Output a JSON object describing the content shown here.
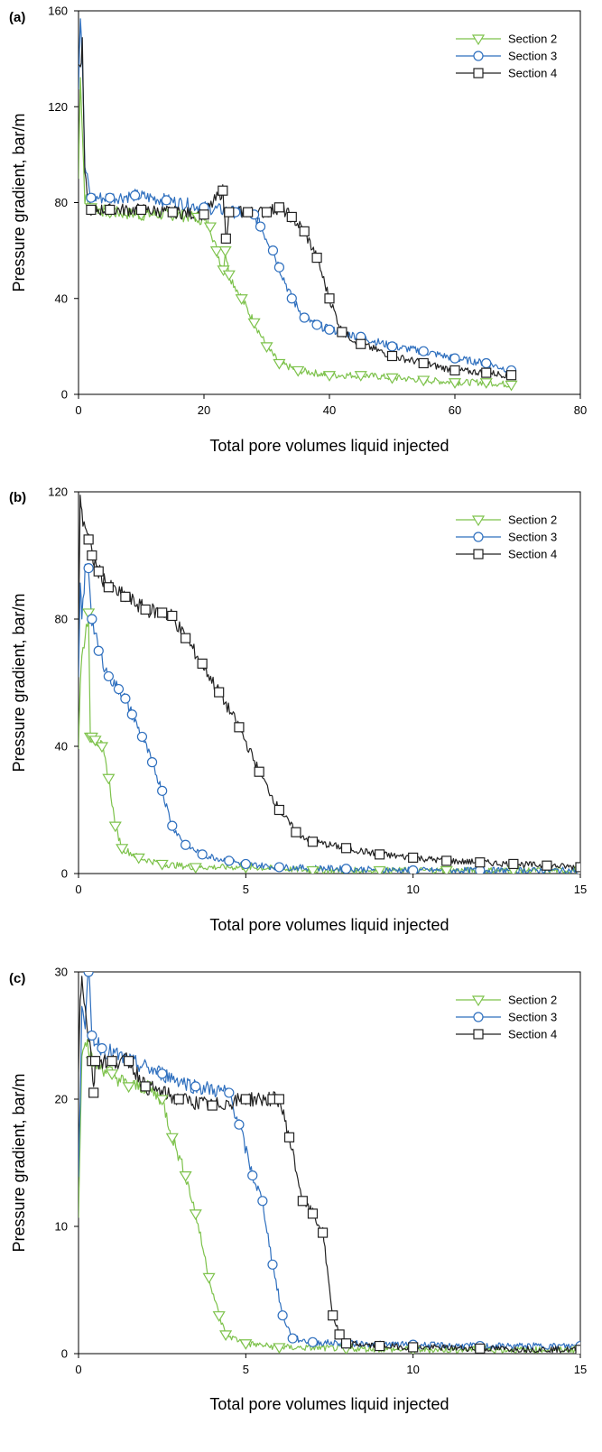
{
  "colors": {
    "section2": "#7dc24b",
    "section3": "#2e6fbe",
    "section4": "#222222",
    "frame": "#000000"
  },
  "chart_data": [
    {
      "type": "line",
      "panel_label": "(a)",
      "xlabel": "Total pore volumes liquid injected",
      "ylabel": "Pressure gradient, bar/m",
      "xlim": [
        0,
        80
      ],
      "ylim": [
        0,
        160
      ],
      "xticks": [
        "0",
        "20",
        "40",
        "60",
        "80"
      ],
      "yticks": [
        "0",
        "40",
        "80",
        "120",
        "160"
      ],
      "legend_position": "top-right",
      "series": [
        {
          "name": "Section 2",
          "marker": "triangle-down",
          "color": "#7dc24b",
          "x": [
            0,
            0.3,
            0.6,
            1,
            2,
            5,
            10,
            15,
            19,
            21,
            22,
            23.1,
            23.4,
            24,
            26,
            28,
            30,
            32,
            35,
            40,
            45,
            50,
            55,
            60,
            65,
            69
          ],
          "y": [
            90,
            135,
            110,
            82,
            78,
            76,
            75,
            75,
            74,
            70,
            60,
            52,
            60,
            50,
            40,
            30,
            20,
            13,
            10,
            8,
            8,
            7,
            6,
            5,
            5,
            4
          ]
        },
        {
          "name": "Section 3",
          "marker": "circle",
          "color": "#2e6fbe",
          "x": [
            0,
            0.3,
            0.6,
            1,
            2,
            5,
            9,
            14,
            20,
            25,
            28,
            29,
            31,
            32,
            34,
            36,
            38,
            40,
            45,
            50,
            55,
            60,
            65,
            69
          ],
          "y": [
            130,
            160,
            140,
            95,
            82,
            82,
            83,
            81,
            78,
            76,
            75,
            70,
            60,
            53,
            40,
            32,
            29,
            27,
            24,
            20,
            18,
            15,
            13,
            10
          ]
        },
        {
          "name": "Section 4",
          "marker": "square",
          "color": "#222222",
          "x": [
            0,
            0.3,
            0.6,
            1,
            2,
            5,
            10,
            15,
            20,
            23,
            23.5,
            24,
            27,
            30,
            32,
            34,
            36,
            38,
            40,
            42,
            45,
            50,
            55,
            60,
            65,
            69
          ],
          "y": [
            140,
            135,
            145,
            90,
            77,
            77,
            77,
            76,
            75,
            85,
            65,
            76,
            76,
            76,
            78,
            74,
            68,
            57,
            40,
            26,
            21,
            16,
            13,
            10,
            9,
            8
          ]
        }
      ]
    },
    {
      "type": "line",
      "panel_label": "(b)",
      "xlabel": "Total pore volumes liquid injected",
      "ylabel": "Pressure gradient, bar/m",
      "xlim": [
        0,
        15
      ],
      "ylim": [
        0,
        120
      ],
      "xticks": [
        "0",
        "5",
        "10",
        "15"
      ],
      "yticks": [
        "0",
        "40",
        "80",
        "120"
      ],
      "legend_position": "top-right",
      "series": [
        {
          "name": "Section 2",
          "marker": "triangle-down",
          "color": "#7dc24b",
          "x": [
            0,
            0.05,
            0.1,
            0.2,
            0.3,
            0.35,
            0.4,
            0.5,
            0.7,
            0.9,
            1.1,
            1.3,
            1.8,
            2.5,
            3.5,
            5,
            7,
            9,
            11,
            13,
            15
          ],
          "y": [
            40,
            60,
            68,
            75,
            82,
            43,
            43,
            42,
            40,
            30,
            15,
            8,
            5,
            3,
            2,
            2,
            1,
            1,
            1,
            1,
            1
          ]
        },
        {
          "name": "Section 3",
          "marker": "circle",
          "color": "#2e6fbe",
          "x": [
            0,
            0.05,
            0.1,
            0.2,
            0.3,
            0.4,
            0.6,
            0.9,
            1.2,
            1.4,
            1.6,
            1.9,
            2.2,
            2.5,
            2.8,
            3.2,
            3.7,
            4.5,
            5,
            6,
            8,
            10,
            12,
            15
          ],
          "y": [
            60,
            90,
            80,
            95,
            96,
            80,
            70,
            62,
            58,
            55,
            50,
            43,
            35,
            26,
            15,
            9,
            6,
            4,
            3,
            2,
            1.5,
            1,
            1,
            1
          ]
        },
        {
          "name": "Section 4",
          "marker": "square",
          "color": "#222222",
          "x": [
            0,
            0.05,
            0.1,
            0.2,
            0.3,
            0.4,
            0.6,
            0.9,
            1.4,
            2,
            2.5,
            2.8,
            3.2,
            3.7,
            4.2,
            4.8,
            5.4,
            6,
            6.5,
            7,
            8,
            9,
            10,
            11,
            12,
            13,
            14,
            15
          ],
          "y": [
            75,
            120,
            112,
            110,
            105,
            100,
            95,
            90,
            87,
            83,
            82,
            81,
            74,
            66,
            57,
            46,
            32,
            20,
            13,
            10,
            8,
            6,
            5,
            4,
            3.5,
            3,
            2.5,
            2
          ]
        }
      ]
    },
    {
      "type": "line",
      "panel_label": "(c)",
      "xlabel": "Total pore volumes liquid injected",
      "ylabel": "Pressure gradient, bar/m",
      "xlim": [
        0,
        15
      ],
      "ylim": [
        0,
        30
      ],
      "xticks": [
        "0",
        "5",
        "10",
        "15"
      ],
      "yticks": [
        "0",
        "10",
        "20",
        "30"
      ],
      "legend_position": "top-right",
      "series": [
        {
          "name": "Section 2",
          "marker": "triangle-down",
          "color": "#7dc24b",
          "x": [
            0,
            0.05,
            0.1,
            0.2,
            0.4,
            1,
            1.5,
            2,
            2.5,
            2.8,
            3.2,
            3.5,
            3.9,
            4.2,
            4.4,
            5,
            6,
            8,
            10,
            12,
            15
          ],
          "y": [
            11,
            17,
            24,
            25,
            23,
            22,
            21,
            21,
            20,
            17,
            14,
            11,
            6,
            3,
            1.5,
            0.8,
            0.5,
            0.4,
            0.3,
            0.3,
            0.3
          ]
        },
        {
          "name": "Section 3",
          "marker": "circle",
          "color": "#2e6fbe",
          "x": [
            0,
            0.05,
            0.1,
            0.2,
            0.3,
            0.4,
            0.7,
            1.5,
            2.5,
            3.5,
            4.5,
            4.8,
            5.2,
            5.5,
            5.8,
            6.1,
            6.4,
            7,
            8,
            10,
            12,
            15
          ],
          "y": [
            14,
            20,
            28,
            26,
            30,
            25,
            24,
            23,
            22,
            21,
            20.5,
            18,
            14,
            12,
            7,
            3,
            1.2,
            0.9,
            0.8,
            0.7,
            0.6,
            0.6
          ]
        },
        {
          "name": "Section 4",
          "marker": "square",
          "color": "#222222",
          "x": [
            0,
            0.05,
            0.1,
            0.2,
            0.4,
            0.45,
            0.5,
            1,
            1.5,
            2,
            3,
            4,
            5,
            5.8,
            6,
            6.3,
            6.7,
            7,
            7.3,
            7.6,
            7.8,
            8,
            9,
            10,
            12,
            15
          ],
          "y": [
            22,
            28,
            30,
            27,
            23,
            20.5,
            23,
            23,
            23,
            21,
            20,
            19.5,
            20,
            20,
            20,
            17,
            12,
            11,
            9.5,
            3,
            1.5,
            0.8,
            0.6,
            0.5,
            0.4,
            0.3
          ]
        }
      ]
    }
  ]
}
